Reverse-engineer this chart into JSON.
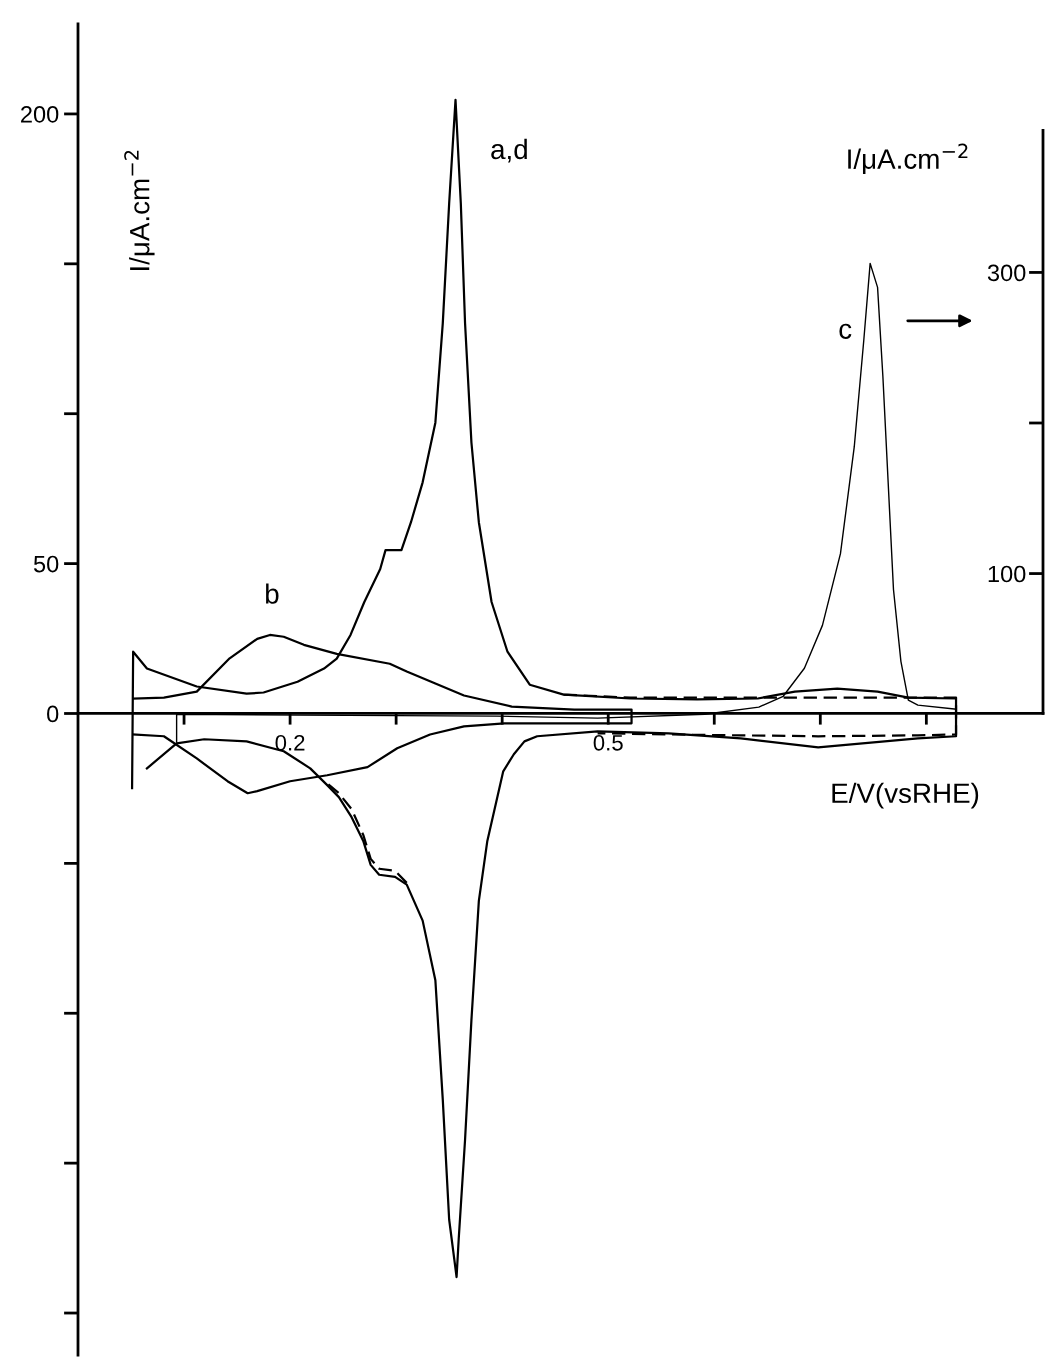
{
  "chart_data": {
    "type": "line",
    "xlabel": "E/V(vsRHE)",
    "ylabel": "I/μA.cm$^{−2}$",
    "y2label": "I/μA.cm$^{−2}$",
    "xlim": [
      0,
      0.91
    ],
    "xticks": [
      {
        "value": 0.1,
        "label": null
      },
      0.2,
      {
        "value": 0.3,
        "label": null
      },
      {
        "value": 0.4,
        "label": null
      },
      0.5,
      {
        "value": 0.6,
        "label": null
      },
      {
        "value": 0.7,
        "label": null
      },
      {
        "value": 0.8,
        "label": null
      }
    ],
    "ylim": [
      -214,
      230
    ],
    "yticks": [
      {
        "value": -200,
        "label": null
      },
      {
        "value": -150,
        "label": null
      },
      {
        "value": -100,
        "label": null
      },
      {
        "value": -50,
        "label": null
      },
      0,
      50,
      {
        "value": 100,
        "label": null
      },
      {
        "value": 150,
        "label": null
      },
      200
    ],
    "y2lim": [
      -419,
      465
    ],
    "y2ticks": [
      100,
      {
        "value": 200,
        "label": null
      },
      300
    ],
    "series": [
      {
        "color": "#000000",
        "line_style": "dashed",
        "x": [
          0.458,
          0.521,
          0.584,
          0.641,
          0.716,
          0.783,
          0.828,
          0.828,
          0.792,
          0.698,
          0.625,
          0.557,
          0.49
        ],
        "values": [
          6.3,
          5.3,
          5.3,
          5.3,
          5.3,
          5.3,
          5.3,
          -7.0,
          -7.3,
          -7.6,
          -7.3,
          -7.0,
          -6.6
        ]
      },
      {
        "color": "#000000",
        "line_style": "dashed",
        "x": [
          0.31,
          0.299,
          0.284,
          0.276,
          0.269,
          0.258,
          0.246,
          0.235
        ],
        "values": [
          -56.5,
          -52.5,
          -51.8,
          -48.5,
          -40.5,
          -31.9,
          -26.6,
          -23.3
        ]
      },
      {
        "color": "#000000",
        "line_style": "solid",
        "x": [
          0.051,
          0.052,
          0.065,
          0.112,
          0.159,
          0.175,
          0.207,
          0.232,
          0.244,
          0.257,
          0.27,
          0.285,
          0.29,
          0.305,
          0.314,
          0.325,
          0.337,
          0.344,
          0.35,
          0.356,
          0.361,
          0.365,
          0.371,
          0.378,
          0.39,
          0.405,
          0.426,
          0.458,
          0.521,
          0.584,
          0.641,
          0.676,
          0.716,
          0.754,
          0.783,
          0.828,
          0.828,
          0.792,
          0.698,
          0.625,
          0.557,
          0.49,
          0.433,
          0.421,
          0.411,
          0.401,
          0.386,
          0.378,
          0.371,
          0.365,
          0.359,
          0.357,
          0.35,
          0.344,
          0.337,
          0.325,
          0.31,
          0.299,
          0.284,
          0.276,
          0.269,
          0.258,
          0.246,
          0.235,
          0.219,
          0.194,
          0.159,
          0.119,
          0.093,
          0.065
        ],
        "values": [
          -24.9,
          20.6,
          15.0,
          9.0,
          6.6,
          7.0,
          10.6,
          15.0,
          18.3,
          26.2,
          37.2,
          48.2,
          54.5,
          54.5,
          63.8,
          77.1,
          97.0,
          130.2,
          170.1,
          204.7,
          170.1,
          130.2,
          90.4,
          63.8,
          37.2,
          20.6,
          9.6,
          6.3,
          5.0,
          4.7,
          5.0,
          7.3,
          8.3,
          7.3,
          5.3,
          5.0,
          -7.6,
          -8.3,
          -11.3,
          -8.3,
          -6.6,
          -6.0,
          -7.6,
          -9.3,
          -13.6,
          -19.3,
          -42.5,
          -62.5,
          -102.3,
          -142.2,
          -175.4,
          -188.0,
          -168.8,
          -128.9,
          -89.0,
          -69.1,
          -57.1,
          -54.5,
          -53.8,
          -50.5,
          -42.5,
          -34.6,
          -27.9,
          -23.9,
          -18.3,
          -12.6,
          -9.3,
          -8.6,
          -10.0,
          -18.3
        ]
      },
      {
        "color": "#000000",
        "line_style": "solid",
        "x": [
          0.052,
          0.081,
          0.112,
          0.143,
          0.169,
          0.181,
          0.194,
          0.213,
          0.244,
          0.294,
          0.31,
          0.337,
          0.364,
          0.409,
          0.468,
          0.522,
          0.522,
          0.502,
          0.402,
          0.364,
          0.332,
          0.301,
          0.273,
          0.235,
          0.2,
          0.169,
          0.16,
          0.141,
          0.112,
          0.081,
          0.052
        ],
        "values": [
          5.0,
          5.3,
          7.3,
          18.4,
          24.9,
          26.2,
          25.6,
          22.9,
          19.9,
          16.6,
          14.0,
          10.0,
          6.0,
          2.3,
          1.3,
          1.3,
          -3.3,
          -3.3,
          -3.3,
          -4.3,
          -7.0,
          -11.6,
          -17.9,
          -20.6,
          -22.6,
          -25.9,
          -26.6,
          -22.6,
          -15.0,
          -7.6,
          -7.0
        ]
      },
      {
        "color": "#000000",
        "line_style": "solid",
        "axis": "y2",
        "x": [
          0.093,
          0.093,
          0.207,
          0.395,
          0.49,
          0.591,
          0.642,
          0.665,
          0.685,
          0.702,
          0.719,
          0.732,
          0.741,
          0.747,
          0.754,
          0.759,
          0.764,
          0.769,
          0.776,
          0.783,
          0.792,
          0.828
        ],
        "values": [
          -11.9,
          6.6,
          6.0,
          5.3,
          4.0,
          6.6,
          11.3,
          18.5,
          37.1,
          65.6,
          113.2,
          184.1,
          255.0,
          306.0,
          290.1,
          231.1,
          160.3,
          89.4,
          41.7,
          15.9,
          12.6,
          9.9
        ]
      }
    ],
    "annotations": [
      "a,d",
      "b",
      "c"
    ]
  }
}
